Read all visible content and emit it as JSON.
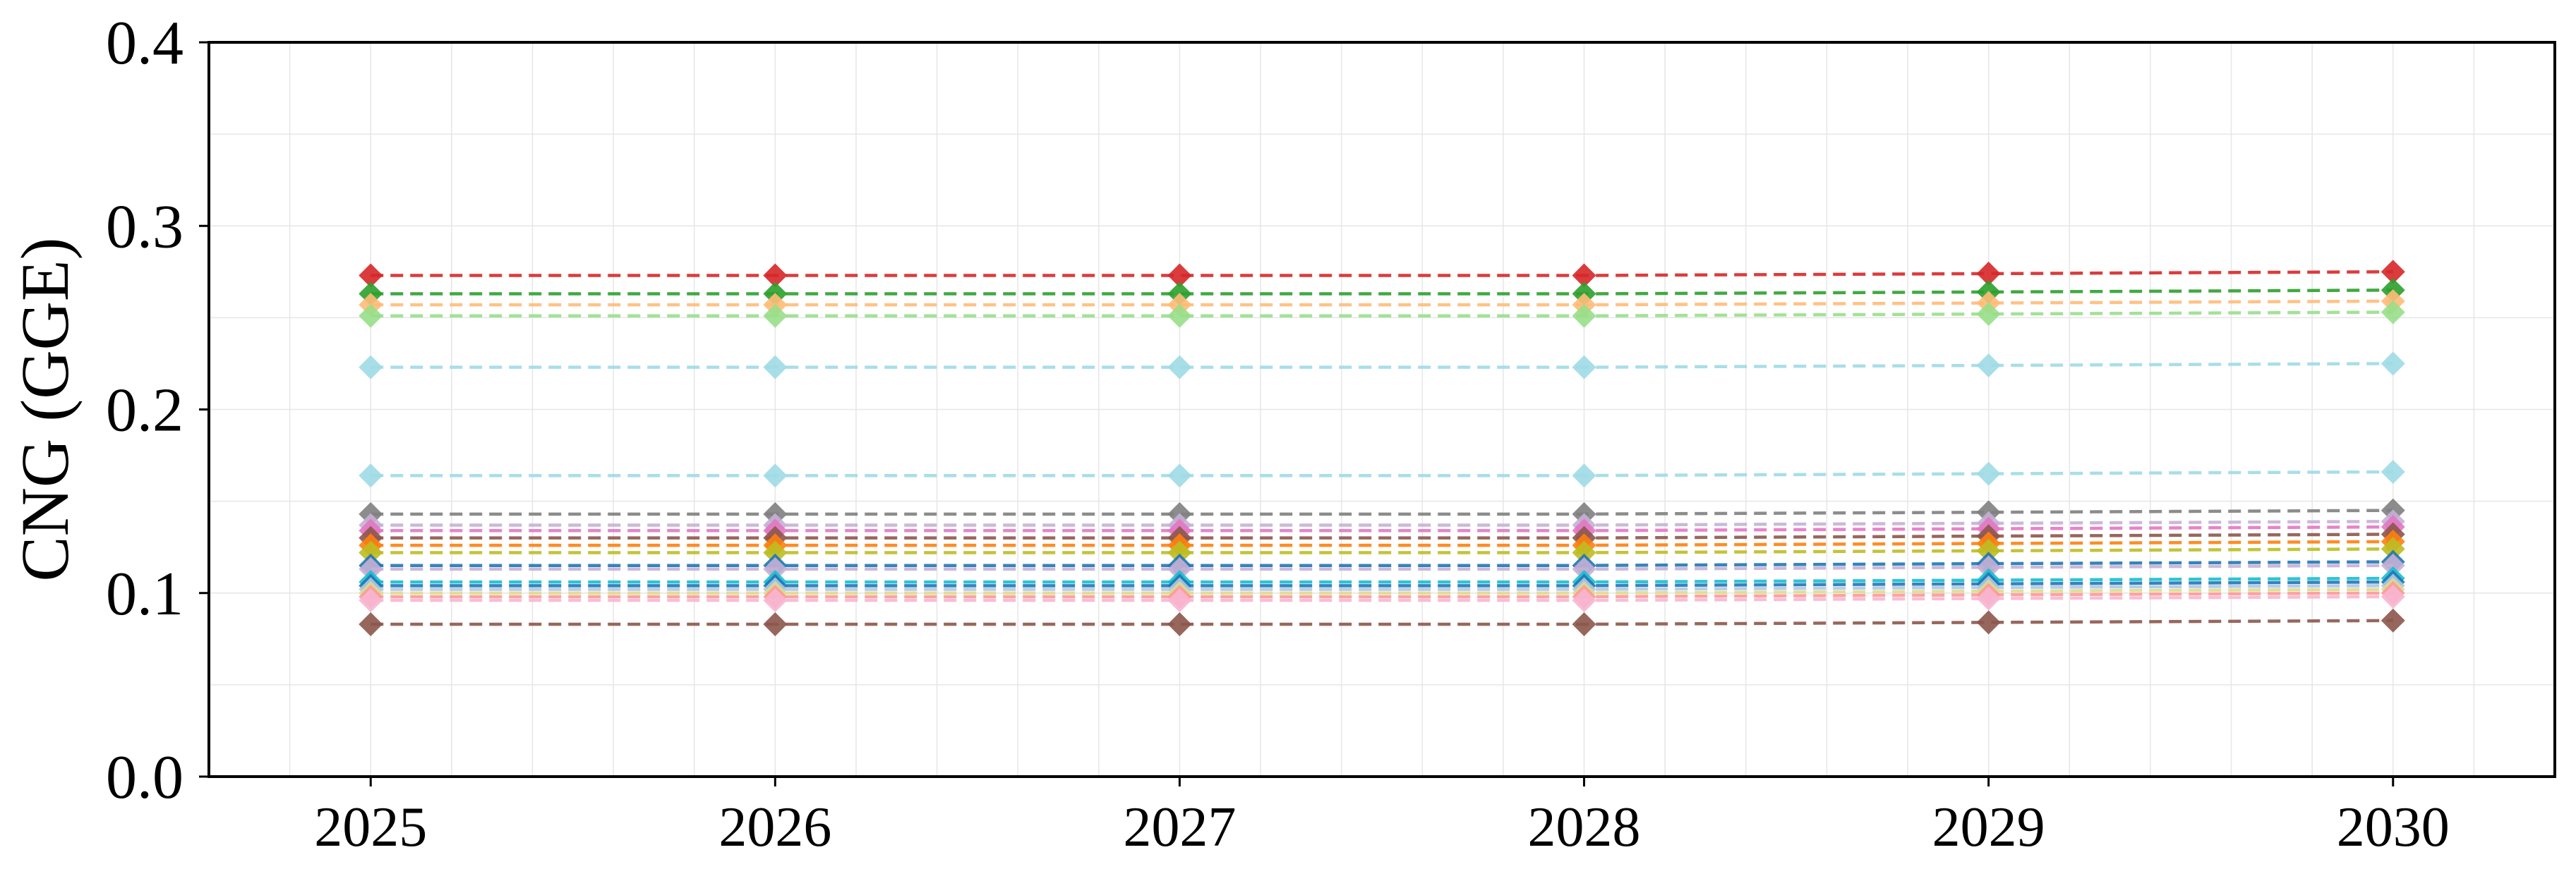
{
  "chart_data": {
    "type": "line",
    "title": "",
    "xlabel": "",
    "ylabel": "CNG (GGE)",
    "x": [
      2025,
      2026,
      2027,
      2028,
      2029,
      2030
    ],
    "xlim": [
      2024.6,
      2030.4
    ],
    "ylim": [
      0.0,
      0.4
    ],
    "x_ticks": [
      2025,
      2026,
      2027,
      2028,
      2029,
      2030
    ],
    "y_ticks": [
      0.0,
      0.1,
      0.2,
      0.3,
      0.4
    ],
    "y_tick_labels": [
      "0.0",
      "0.1",
      "0.2",
      "0.3",
      "0.4"
    ],
    "grid": true,
    "legend": "none",
    "line_style": "dashed",
    "marker": "diamond",
    "series": [
      {
        "color": "#d62728",
        "values": [
          0.273,
          0.273,
          0.273,
          0.273,
          0.274,
          0.275
        ]
      },
      {
        "color": "#2ca02c",
        "values": [
          0.263,
          0.263,
          0.263,
          0.263,
          0.264,
          0.265
        ]
      },
      {
        "color": "#ffbb78",
        "values": [
          0.257,
          0.257,
          0.257,
          0.257,
          0.258,
          0.259
        ]
      },
      {
        "color": "#98df8a",
        "values": [
          0.251,
          0.251,
          0.251,
          0.251,
          0.252,
          0.253
        ]
      },
      {
        "color": "#9edae5",
        "values": [
          0.223,
          0.223,
          0.223,
          0.223,
          0.224,
          0.225
        ]
      },
      {
        "color": "#9edae5",
        "values": [
          0.164,
          0.164,
          0.164,
          0.164,
          0.165,
          0.166
        ]
      },
      {
        "color": "#7f7f7f",
        "values": [
          0.143,
          0.143,
          0.143,
          0.143,
          0.144,
          0.145
        ]
      },
      {
        "color": "#c5b0d5",
        "values": [
          0.137,
          0.137,
          0.137,
          0.137,
          0.138,
          0.139
        ]
      },
      {
        "color": "#e377c2",
        "values": [
          0.134,
          0.134,
          0.134,
          0.134,
          0.135,
          0.136
        ]
      },
      {
        "color": "#8c564b",
        "values": [
          0.13,
          0.13,
          0.13,
          0.13,
          0.131,
          0.132
        ]
      },
      {
        "color": "#ff7f0e",
        "values": [
          0.126,
          0.126,
          0.126,
          0.126,
          0.127,
          0.128
        ]
      },
      {
        "color": "#bcbd22",
        "values": [
          0.122,
          0.122,
          0.122,
          0.122,
          0.123,
          0.124
        ]
      },
      {
        "color": "#1f77b4",
        "values": [
          0.115,
          0.115,
          0.115,
          0.115,
          0.116,
          0.117
        ]
      },
      {
        "color": "#c5b0d5",
        "values": [
          0.113,
          0.113,
          0.113,
          0.113,
          0.114,
          0.115
        ]
      },
      {
        "color": "#17becf",
        "values": [
          0.106,
          0.106,
          0.106,
          0.106,
          0.107,
          0.108
        ]
      },
      {
        "color": "#1f77b4",
        "values": [
          0.104,
          0.104,
          0.104,
          0.104,
          0.105,
          0.106
        ]
      },
      {
        "color": "#aec7e8",
        "values": [
          0.102,
          0.102,
          0.102,
          0.102,
          0.103,
          0.104
        ]
      },
      {
        "color": "#dbdb8d",
        "values": [
          0.1,
          0.1,
          0.1,
          0.1,
          0.101,
          0.102
        ]
      },
      {
        "color": "#ff9896",
        "values": [
          0.098,
          0.098,
          0.098,
          0.098,
          0.099,
          0.1
        ]
      },
      {
        "color": "#f7b6d2",
        "values": [
          0.096,
          0.096,
          0.096,
          0.096,
          0.097,
          0.098
        ]
      },
      {
        "color": "#8c564b",
        "values": [
          0.083,
          0.083,
          0.083,
          0.083,
          0.084,
          0.085
        ]
      }
    ]
  }
}
